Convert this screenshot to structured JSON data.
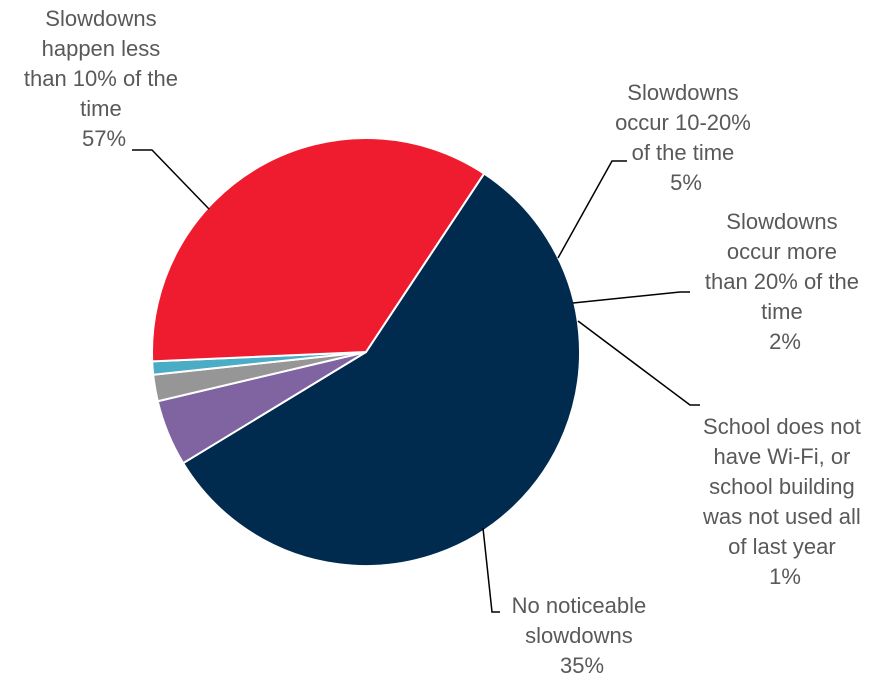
{
  "chart_data": {
    "type": "pie",
    "title": "",
    "categories": [
      "Slowdowns happen less than 10% of the time",
      "Slowdowns occur 10-20% of the time",
      "Slowdowns occur more than 20% of the time",
      "School does not have Wi-Fi, or school building was not used all of last year",
      "No noticeable slowdowns"
    ],
    "values": [
      57,
      5,
      2,
      1,
      35
    ],
    "value_labels": [
      "57%",
      "5%",
      "2%",
      "1%",
      "35%"
    ],
    "colors": [
      "#002b4f",
      "#8064a2",
      "#969696",
      "#4bacc6",
      "#ee1c2e"
    ],
    "label_lines": [
      [
        "Slowdowns",
        "happen less",
        "than 10% of the",
        "time"
      ],
      [
        "Slowdowns",
        "occur 10-20%",
        "of the time"
      ],
      [
        "Slowdowns",
        "occur more",
        "than 20% of the",
        "time"
      ],
      [
        "School does not",
        "have Wi-Fi, or",
        "school building",
        "was not used all",
        "of last year"
      ],
      [
        "No noticeable",
        "slowdowns"
      ]
    ]
  }
}
